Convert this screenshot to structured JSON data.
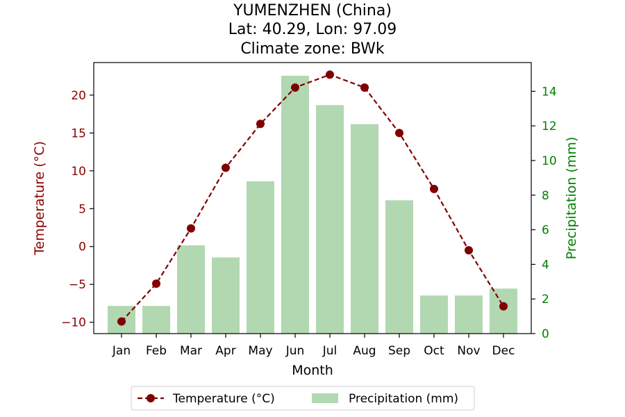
{
  "chart_data": {
    "type": "bar+line",
    "title_lines": [
      "YUMENZHEN (China)",
      "Lat: 40.29, Lon: 97.09",
      "Climate zone: BWk"
    ],
    "xlabel": "Month",
    "ylabel_left": "Temperature (°C)",
    "ylabel_right": "Precipitation (mm)",
    "categories": [
      "Jan",
      "Feb",
      "Mar",
      "Apr",
      "May",
      "Jun",
      "Jul",
      "Aug",
      "Sep",
      "Oct",
      "Nov",
      "Dec"
    ],
    "series": [
      {
        "name": "Temperature (°C)",
        "kind": "line",
        "axis": "left",
        "values": [
          -9.9,
          -4.9,
          2.4,
          10.4,
          16.2,
          21.0,
          22.7,
          21.0,
          15.0,
          7.6,
          -0.5,
          -7.9
        ]
      },
      {
        "name": "Precipitation (mm)",
        "kind": "bar",
        "axis": "right",
        "values": [
          1.6,
          1.6,
          5.1,
          4.4,
          8.8,
          14.9,
          13.2,
          12.1,
          7.7,
          2.2,
          2.2,
          2.6
        ]
      }
    ],
    "ylim_left": [
      -11.5,
      24.3
    ],
    "yticks_left": [
      -10,
      -5,
      0,
      5,
      10,
      15,
      20
    ],
    "ylim_right": [
      0,
      15.66
    ],
    "yticks_right": [
      0,
      2,
      4,
      6,
      8,
      10,
      12,
      14
    ],
    "grid": false,
    "legend_position": "bottom-center",
    "colors": {
      "temperature": "#800000",
      "precipitation": "#b2d8b2",
      "left_axis_text": "#8b0000",
      "right_axis_text": "#008000"
    }
  }
}
